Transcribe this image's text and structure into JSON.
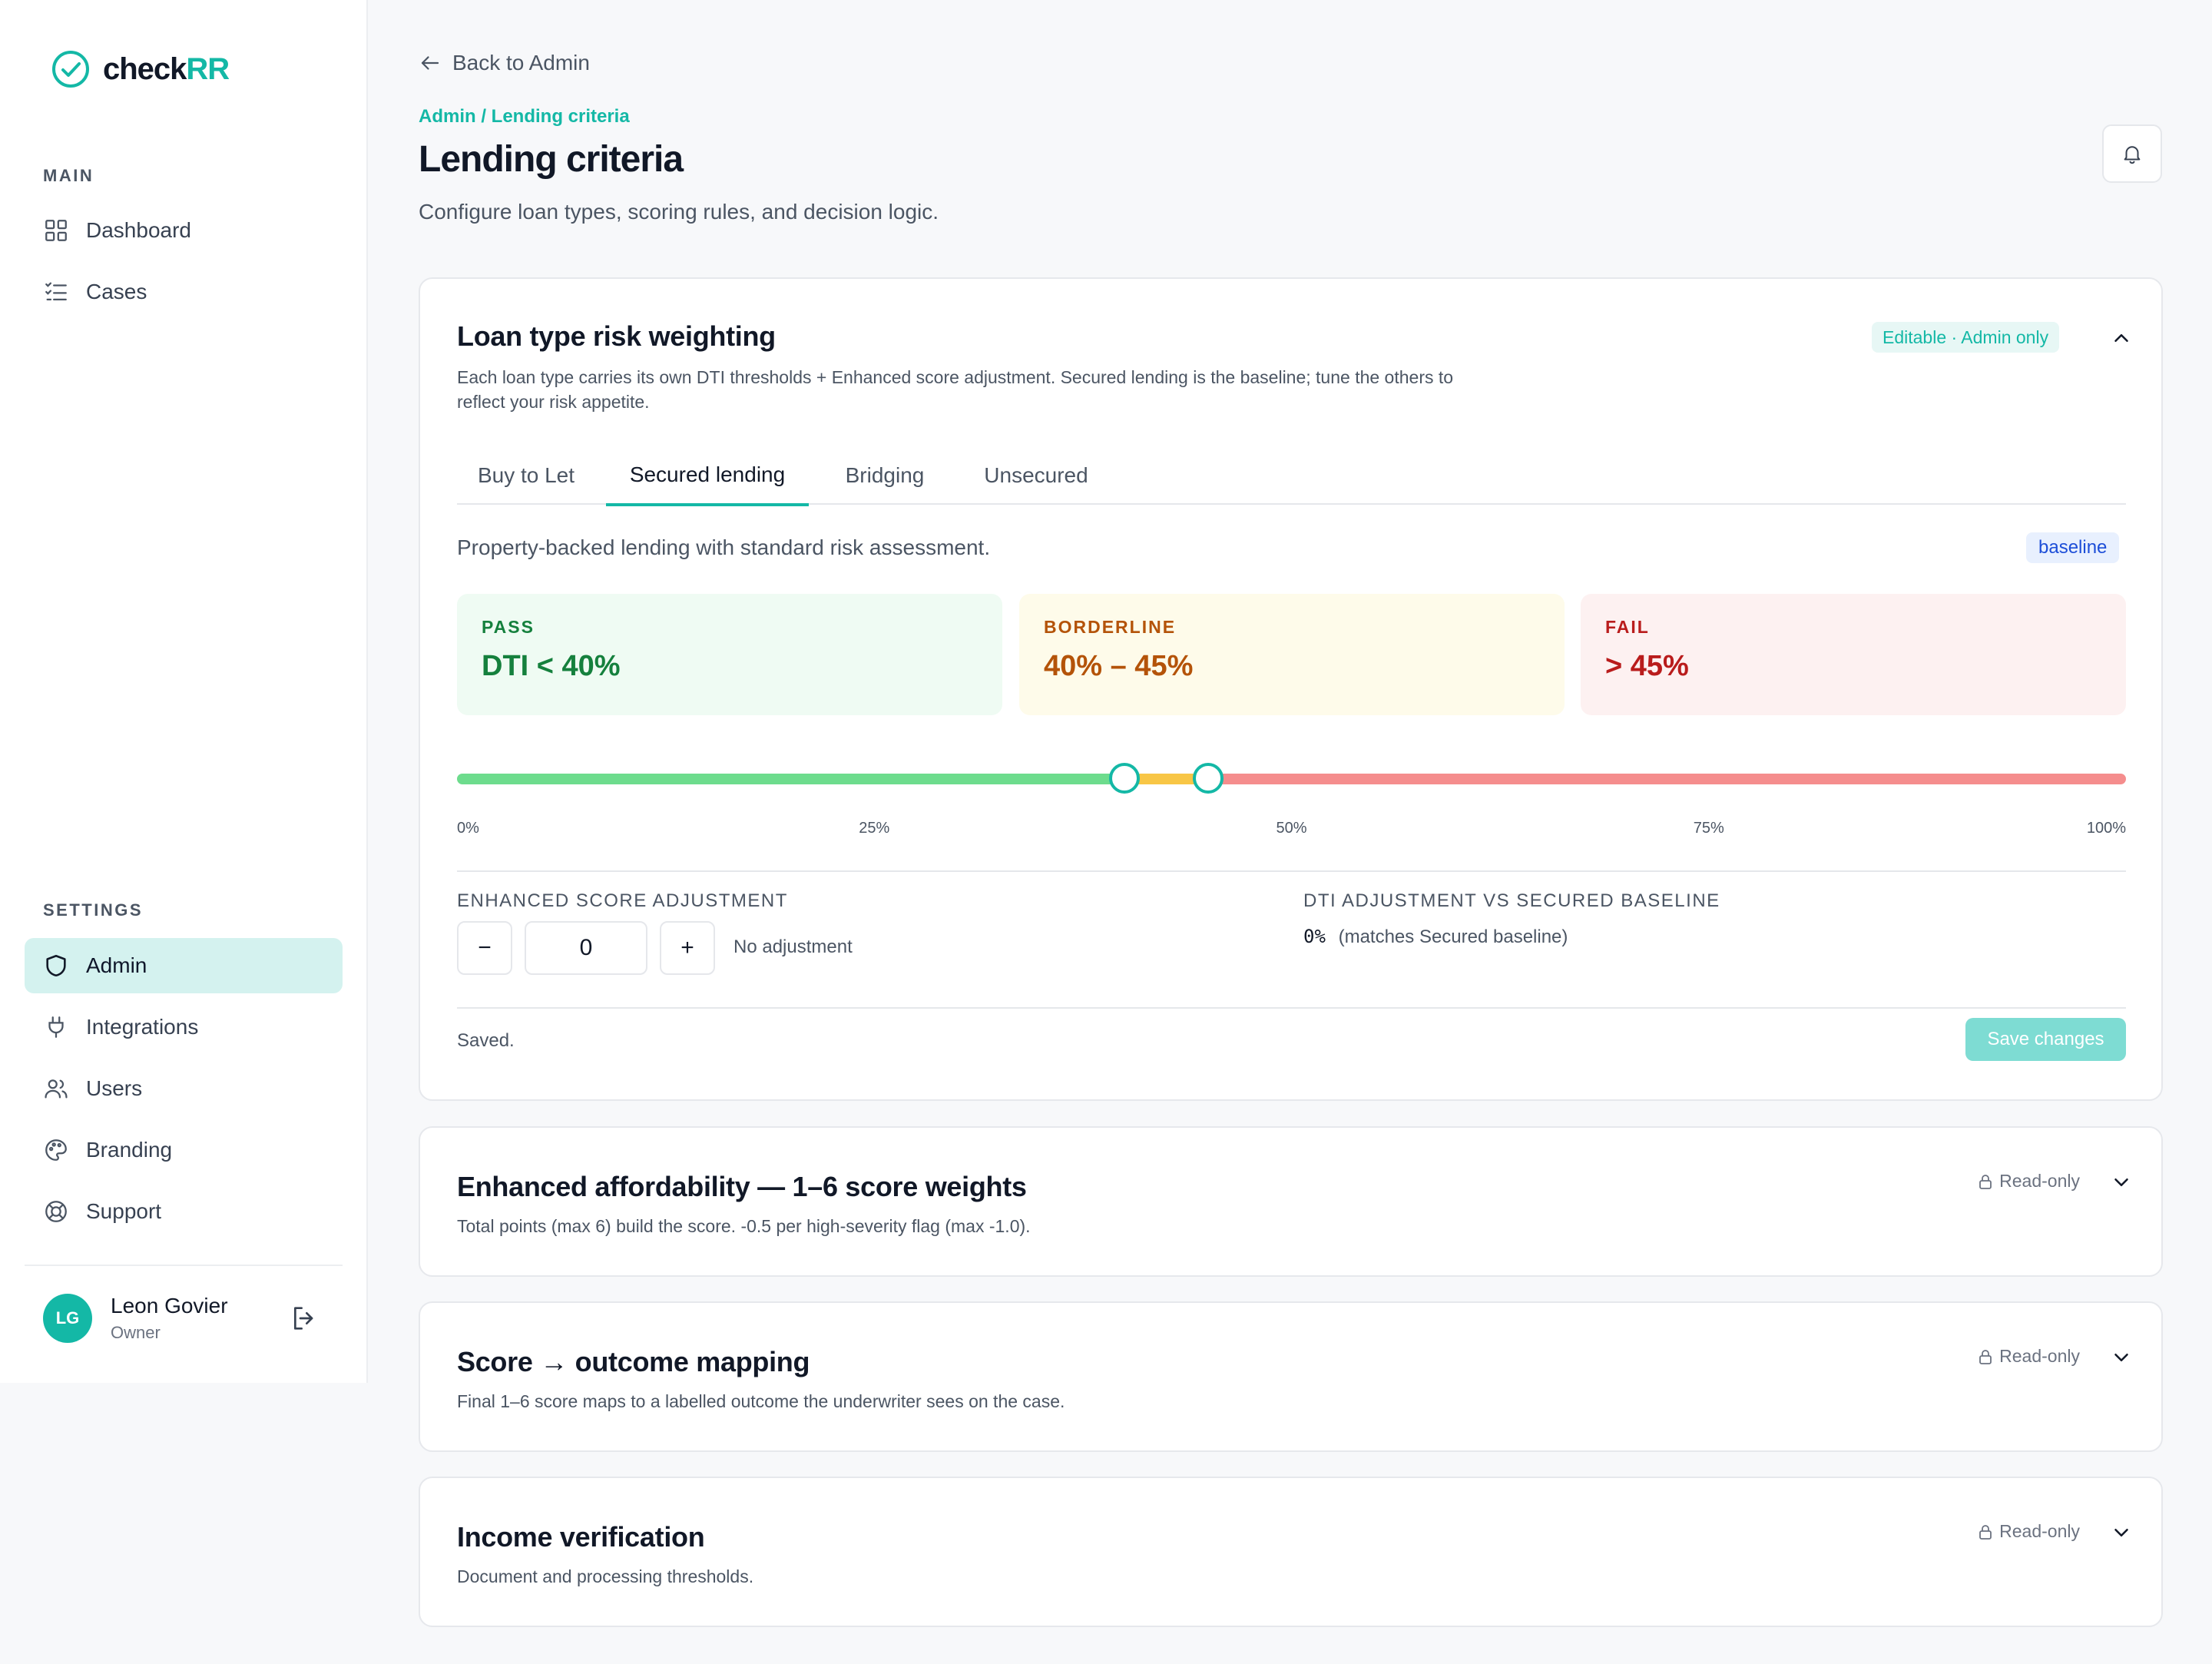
{
  "brand": {
    "name_part1": "check",
    "name_part2": "RR"
  },
  "sidebar": {
    "main_label": "MAIN",
    "settings_label": "SETTINGS",
    "main_items": [
      {
        "label": "Dashboard"
      },
      {
        "label": "Cases"
      }
    ],
    "settings_items": [
      {
        "label": "Admin",
        "active": true
      },
      {
        "label": "Integrations"
      },
      {
        "label": "Users"
      },
      {
        "label": "Branding"
      },
      {
        "label": "Support"
      }
    ],
    "user": {
      "initials": "LG",
      "name": "Leon Govier",
      "role": "Owner"
    }
  },
  "header": {
    "back_label": "Back to Admin",
    "breadcrumb": "Admin / Lending criteria",
    "title": "Lending criteria",
    "subtitle": "Configure loan types, scoring rules, and decision logic."
  },
  "loan_card": {
    "title": "Loan type risk weighting",
    "badge": "Editable · Admin only",
    "description": "Each loan type carries its own DTI thresholds + Enhanced score adjustment. Secured lending is the baseline; tune the others to reflect your risk appetite.",
    "tabs": [
      "Buy to Let",
      "Secured lending",
      "Bridging",
      "Unsecured"
    ],
    "active_tab": 1,
    "tab_description": "Property-backed lending with standard risk assessment.",
    "baseline_badge": "baseline",
    "bands": {
      "pass": {
        "label": "PASS",
        "value": "DTI < 40%"
      },
      "borderline": {
        "label": "BORDERLINE",
        "value": "40% – 45%"
      },
      "fail": {
        "label": "FAIL",
        "value": "> 45%"
      }
    },
    "slider": {
      "min": 0,
      "max": 100,
      "low_threshold": 40,
      "high_threshold": 45,
      "ticks": [
        "0%",
        "25%",
        "50%",
        "75%",
        "100%"
      ]
    },
    "enhanced_label": "ENHANCED SCORE ADJUSTMENT",
    "minus": "−",
    "plus": "+",
    "adjustment_value": "0",
    "adjustment_note": "No adjustment",
    "dti_label": "DTI ADJUSTMENT VS SECURED BASELINE",
    "dti_value": "0%",
    "dti_note": "(matches Secured baseline)",
    "status": "Saved.",
    "save_label": "Save changes"
  },
  "readonly_cards": [
    {
      "title": "Enhanced affordability — 1–6 score weights",
      "description": "Total points (max 6) build the score. -0.5 per high-severity flag (max -1.0).",
      "badge": "Read-only"
    },
    {
      "title": "Score → outcome mapping",
      "description": "Final 1–6 score maps to a labelled outcome the underwriter sees on the case.",
      "badge": "Read-only"
    },
    {
      "title": "Income verification",
      "description": "Document and processing thresholds.",
      "badge": "Read-only"
    }
  ],
  "colors": {
    "accent": "#14b8a6",
    "pass_bg": "#effbf3",
    "pass_text": "#15803d",
    "borderline_bg": "#fefbea",
    "borderline_text": "#b45309",
    "fail_bg": "#fdf1f1",
    "fail_text": "#b91c1c",
    "track_green": "#6ddc8d",
    "track_yellow": "#f8c646",
    "track_red": "#f58d8d"
  }
}
